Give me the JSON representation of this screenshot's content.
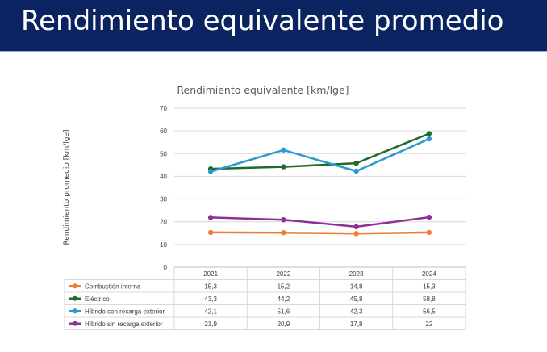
{
  "header": {
    "title": "Rendimiento equivalente promedio"
  },
  "chart_data": {
    "type": "line",
    "title": "Rendimiento equivalente [km/lge]",
    "ylabel": "Rendimiento promedio [km/lge]",
    "xlabel": "",
    "ylim": [
      0,
      70
    ],
    "yticks": [
      0,
      10,
      20,
      30,
      40,
      50,
      60,
      70
    ],
    "grid": true,
    "legend": "data-table",
    "categories": [
      "2021",
      "2022",
      "2023",
      "2024"
    ],
    "series": [
      {
        "name": "Combustión interna",
        "color": "#ed7d31",
        "values": [
          15.3,
          15.2,
          14.8,
          15.3
        ],
        "labels": [
          "15,3",
          "15,2",
          "14,8",
          "15,3"
        ]
      },
      {
        "name": "Eléctrico",
        "color": "#1e6b2e",
        "values": [
          43.3,
          44.2,
          45.8,
          58.8
        ],
        "labels": [
          "43,3",
          "44,2",
          "45,8",
          "58,8"
        ]
      },
      {
        "name": "Híbrido con recarga exterior",
        "color": "#2b9bcf",
        "values": [
          42.1,
          51.6,
          42.3,
          56.5
        ],
        "labels": [
          "42,1",
          "51,6",
          "42,3",
          "56,5"
        ]
      },
      {
        "name": "Híbrido sin recarga exterior",
        "color": "#8e3194",
        "values": [
          21.9,
          20.9,
          17.8,
          22
        ],
        "labels": [
          "21,9",
          "20,9",
          "17,8",
          "22"
        ]
      }
    ]
  }
}
